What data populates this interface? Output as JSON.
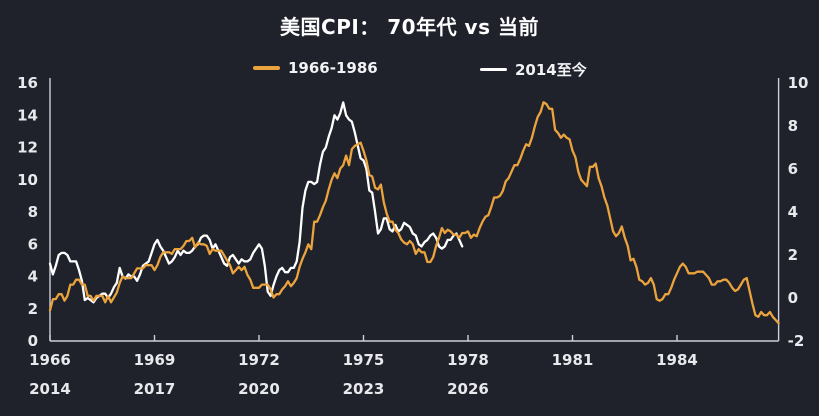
{
  "title": "美国CPI： 70年代 vs 当前",
  "colors": {
    "background": "#1F212B",
    "axis_line": "#CDD0D6",
    "tick_text": "#E8E9EC",
    "series_1966": "#EBA33D",
    "series_2014": "#FFFFFF"
  },
  "chart_data": {
    "type": "line",
    "title": "美国CPI： 70年代 vs 当前",
    "legend_position": "top",
    "grid": false,
    "y_axis_left": {
      "label": "",
      "range": [
        0,
        16
      ],
      "ticks": [
        0,
        2,
        4,
        6,
        8,
        10,
        12,
        14,
        16
      ]
    },
    "y_axis_right": {
      "label": "",
      "range": [
        -2,
        10
      ],
      "ticks": [
        -2,
        0,
        2,
        4,
        6,
        8,
        10
      ]
    },
    "x_axis_top_row": {
      "start_year": 1966,
      "end_year_frac": 1986.9167,
      "ticks": [
        1966,
        1969,
        1972,
        1975,
        1978,
        1981,
        1984
      ]
    },
    "x_axis_bottom_row": {
      "start_year": 2014,
      "ticks": [
        2014,
        2017,
        2020,
        2023,
        2026
      ]
    },
    "series": [
      {
        "name": "1966-1986",
        "color": "#EBA33D",
        "axis": "left",
        "start": "1966-01",
        "frequency": "monthly",
        "unit": "% YoY",
        "values": [
          1.9,
          2.6,
          2.6,
          2.9,
          2.9,
          2.5,
          2.8,
          3.5,
          3.5,
          3.8,
          3.8,
          3.5,
          3.5,
          2.8,
          2.8,
          2.5,
          2.8,
          2.8,
          2.8,
          2.4,
          2.8,
          2.4,
          2.7,
          3.0,
          3.6,
          4.0,
          3.9,
          3.9,
          3.9,
          4.2,
          4.5,
          4.5,
          4.5,
          4.7,
          4.7,
          4.7,
          4.4,
          4.7,
          5.2,
          5.5,
          5.5,
          5.5,
          5.4,
          5.7,
          5.7,
          5.7,
          5.9,
          6.2,
          6.2,
          6.4,
          5.8,
          6.1,
          6.0,
          6.0,
          5.9,
          5.4,
          5.7,
          5.6,
          5.6,
          5.6,
          5.3,
          5.0,
          4.7,
          4.2,
          4.4,
          4.6,
          4.4,
          4.6,
          4.1,
          3.8,
          3.3,
          3.3,
          3.3,
          3.5,
          3.5,
          3.5,
          3.2,
          2.7,
          2.9,
          2.9,
          3.2,
          3.4,
          3.7,
          3.4,
          3.6,
          3.9,
          4.6,
          5.1,
          5.5,
          6.0,
          5.7,
          7.4,
          7.4,
          7.8,
          8.3,
          8.7,
          9.4,
          10.0,
          10.4,
          10.1,
          10.7,
          10.9,
          11.5,
          10.9,
          11.9,
          12.1,
          12.2,
          12.3,
          11.8,
          11.2,
          10.3,
          10.2,
          9.5,
          9.4,
          9.7,
          8.6,
          7.9,
          7.4,
          7.4,
          6.9,
          6.7,
          6.3,
          6.1,
          6.0,
          6.2,
          6.0,
          5.4,
          5.7,
          5.5,
          5.5,
          4.9,
          4.9,
          5.2,
          5.9,
          6.4,
          7.0,
          6.7,
          6.9,
          6.8,
          6.6,
          6.6,
          6.4,
          6.7,
          6.7,
          6.8,
          6.4,
          6.6,
          6.5,
          7.0,
          7.4,
          7.7,
          7.8,
          8.3,
          8.9,
          8.9,
          9.0,
          9.3,
          9.9,
          10.1,
          10.5,
          10.9,
          10.9,
          11.3,
          11.8,
          12.2,
          12.1,
          12.6,
          13.3,
          13.9,
          14.2,
          14.8,
          14.7,
          14.4,
          14.4,
          13.1,
          12.9,
          12.6,
          12.8,
          12.6,
          12.5,
          11.8,
          11.4,
          10.5,
          10.0,
          9.8,
          9.6,
          10.8,
          10.8,
          11.0,
          10.1,
          9.6,
          8.9,
          8.4,
          7.6,
          6.8,
          6.5,
          6.7,
          7.1,
          6.4,
          5.9,
          5.0,
          5.1,
          4.6,
          3.8,
          3.7,
          3.5,
          3.6,
          3.9,
          3.5,
          2.6,
          2.5,
          2.6,
          2.9,
          2.9,
          3.3,
          3.8,
          4.2,
          4.6,
          4.8,
          4.6,
          4.2,
          4.2,
          4.2,
          4.3,
          4.3,
          4.3,
          4.1,
          3.9,
          3.5,
          3.5,
          3.7,
          3.7,
          3.8,
          3.8,
          3.6,
          3.3,
          3.1,
          3.2,
          3.5,
          3.8,
          3.9,
          3.1,
          2.3,
          1.6,
          1.5,
          1.8,
          1.6,
          1.6,
          1.8,
          1.5,
          1.3,
          1.1
        ]
      },
      {
        "name": "2014至今",
        "color": "#FFFFFF",
        "axis": "right",
        "start": "2014-01",
        "frequency": "monthly",
        "unit": "% YoY",
        "values": [
          1.6,
          1.1,
          1.5,
          2.0,
          2.1,
          2.1,
          2.0,
          1.7,
          1.7,
          1.7,
          1.3,
          0.8,
          -0.1,
          0.0,
          -0.1,
          -0.2,
          0.0,
          0.1,
          0.2,
          0.2,
          0.0,
          0.2,
          0.5,
          0.7,
          1.4,
          1.0,
          0.9,
          1.1,
          1.0,
          1.0,
          0.8,
          1.1,
          1.5,
          1.6,
          1.7,
          2.1,
          2.5,
          2.7,
          2.4,
          2.2,
          1.9,
          1.6,
          1.7,
          1.9,
          2.2,
          2.0,
          2.2,
          2.1,
          2.1,
          2.2,
          2.4,
          2.5,
          2.8,
          2.9,
          2.9,
          2.7,
          2.3,
          2.5,
          2.2,
          1.9,
          1.6,
          1.5,
          1.9,
          2.0,
          1.8,
          1.6,
          1.8,
          1.7,
          1.7,
          1.8,
          2.1,
          2.3,
          2.5,
          2.3,
          1.5,
          0.3,
          0.1,
          0.6,
          1.0,
          1.3,
          1.4,
          1.2,
          1.2,
          1.4,
          1.4,
          1.7,
          2.6,
          4.2,
          5.0,
          5.4,
          5.4,
          5.3,
          5.4,
          6.2,
          6.8,
          7.0,
          7.5,
          7.9,
          8.5,
          8.3,
          8.6,
          9.1,
          8.5,
          8.3,
          8.2,
          7.7,
          7.1,
          6.5,
          6.4,
          6.0,
          5.0,
          4.9,
          4.0,
          3.0,
          3.2,
          3.7,
          3.7,
          3.2,
          3.1,
          3.4,
          3.1,
          3.2,
          3.5,
          3.4,
          3.3,
          3.0,
          2.9,
          2.5,
          2.4,
          2.6,
          2.7,
          2.9,
          3.0,
          2.8,
          2.4,
          2.3,
          2.4,
          2.7,
          2.7,
          2.9,
          3.0,
          2.7,
          2.4
        ]
      }
    ]
  }
}
